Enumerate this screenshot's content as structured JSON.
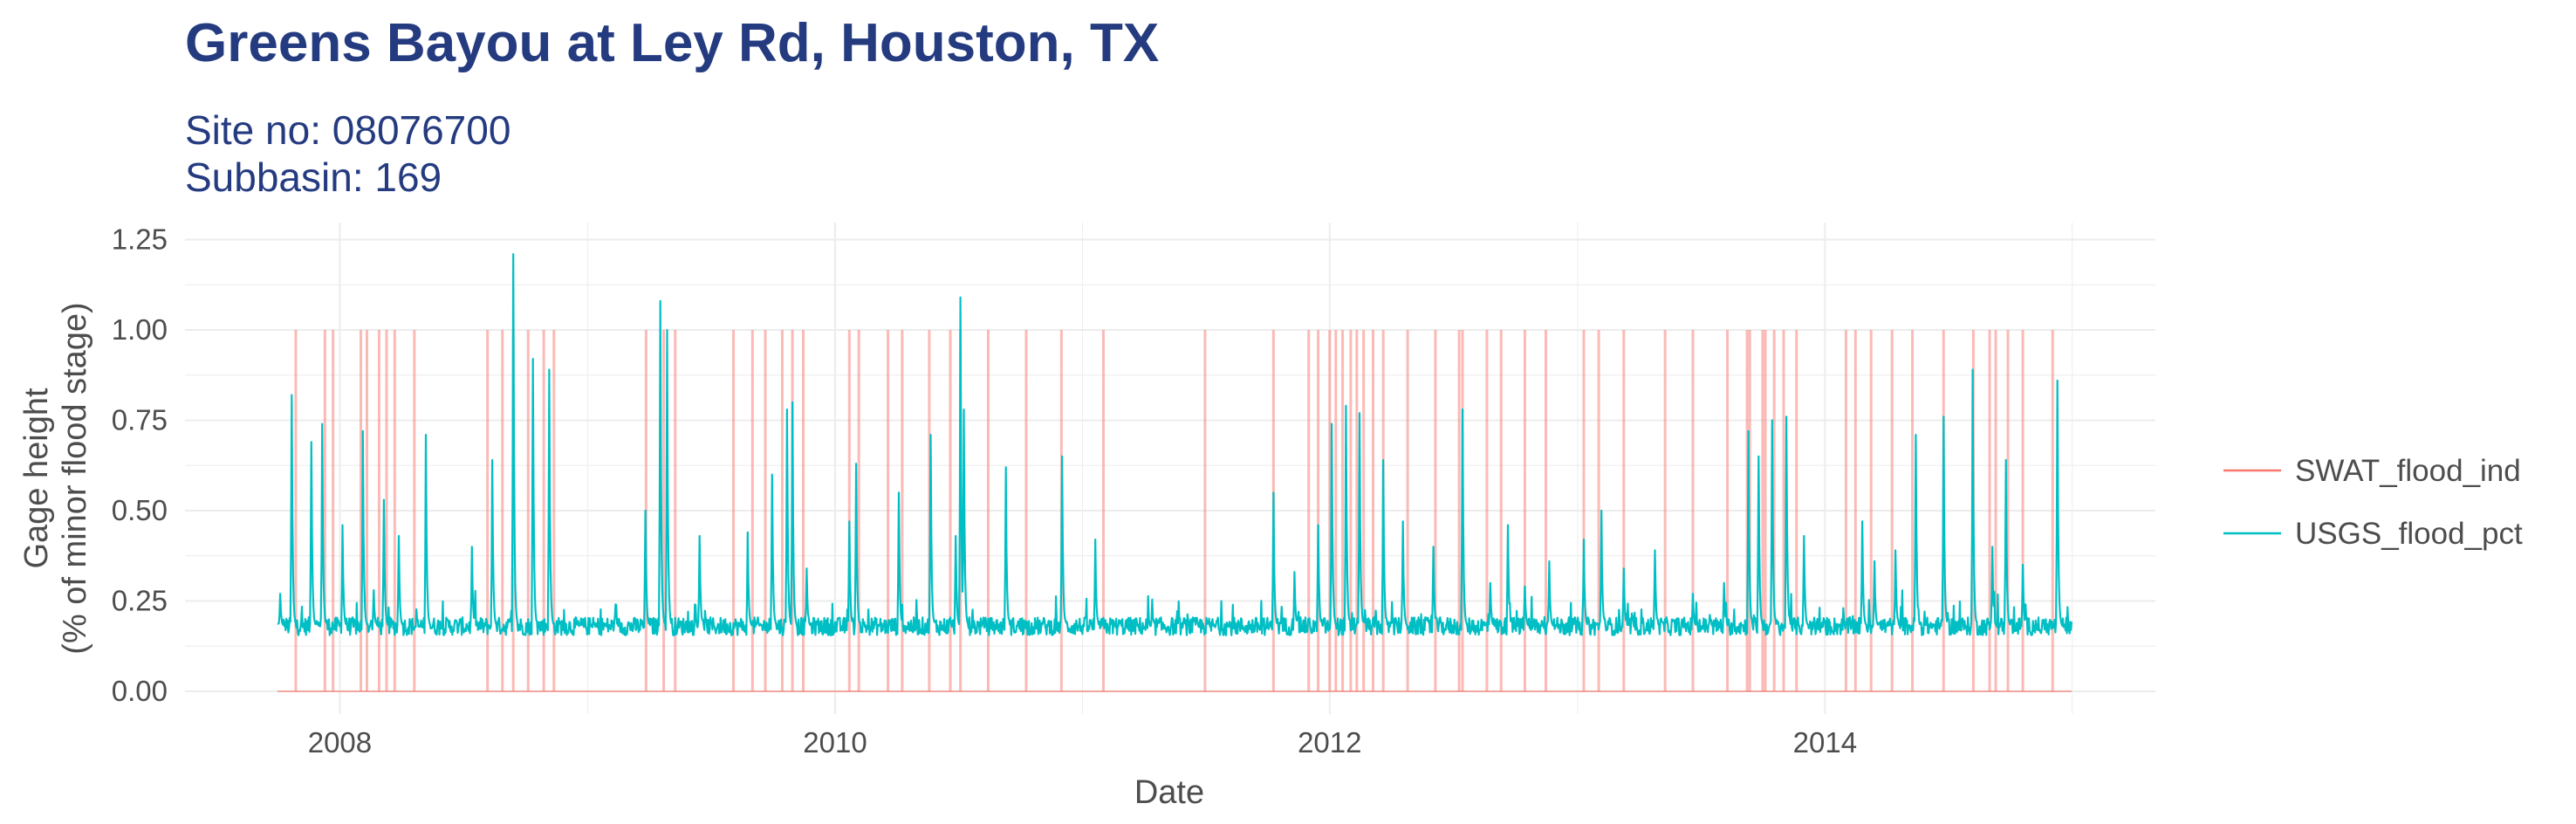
{
  "chart_data": {
    "type": "line",
    "title": "Greens Bayou at Ley Rd, Houston, TX",
    "subtitle": [
      "Site no: 08076700",
      "Subbasin: 169"
    ],
    "xlabel": "Date",
    "ylabel": [
      "Gage height",
      "(% of minor flood stage)"
    ],
    "x_range": [
      "2007-10-01",
      "2014-12-31"
    ],
    "x_ticks": [
      "2008",
      "2010",
      "2012",
      "2014"
    ],
    "ylim": [
      -0.06,
      1.25
    ],
    "y_ticks": [
      "0.00",
      "0.25",
      "0.50",
      "0.75",
      "1.00",
      "1.25"
    ],
    "grid": true,
    "legend_position": "right",
    "series": [
      {
        "name": "SWAT_flood_ind",
        "color": "#F8766D",
        "baseline": 0,
        "flood_value": 1,
        "flood_dates": [
          "2007-10-28",
          "2007-12-10",
          "2007-12-22",
          "2008-02-01",
          "2008-02-10",
          "2008-02-28",
          "2008-03-10",
          "2008-03-22",
          "2008-04-20",
          "2008-08-06",
          "2008-08-28",
          "2008-09-13",
          "2008-10-05",
          "2008-10-28",
          "2008-11-12",
          "2009-03-28",
          "2009-04-23",
          "2009-05-10",
          "2009-08-04",
          "2009-09-01",
          "2009-09-20",
          "2009-10-15",
          "2009-10-30",
          "2009-11-15",
          "2010-01-22",
          "2010-02-05",
          "2010-03-20",
          "2010-04-10",
          "2010-05-20",
          "2010-06-20",
          "2010-07-05",
          "2010-08-15",
          "2010-10-10",
          "2010-12-01",
          "2011-02-01",
          "2011-07-01",
          "2011-10-10",
          "2011-12-01",
          "2011-12-15",
          "2012-01-01",
          "2012-01-10",
          "2012-01-20",
          "2012-02-01",
          "2012-02-10",
          "2012-02-20",
          "2012-03-05",
          "2012-03-20",
          "2012-04-25",
          "2012-06-05",
          "2012-07-10",
          "2012-07-15",
          "2012-08-20",
          "2012-09-10",
          "2012-10-15",
          "2012-11-15",
          "2013-01-10",
          "2013-02-01",
          "2013-03-10",
          "2013-05-10",
          "2013-06-20",
          "2013-08-10",
          "2013-09-08",
          "2013-09-12",
          "2013-10-01",
          "2013-10-05",
          "2013-10-18",
          "2013-11-01",
          "2013-11-20",
          "2014-02-01",
          "2014-02-15",
          "2014-03-10",
          "2014-04-10",
          "2014-05-10",
          "2014-06-25",
          "2014-08-08",
          "2014-09-01",
          "2014-09-10",
          "2014-09-28",
          "2014-10-20",
          "2014-12-03"
        ]
      },
      {
        "name": "USGS_flood_pct",
        "color": "#00BFC4",
        "base_level": 0.18,
        "peaks": [
          [
            "2007-10-05",
            0.27
          ],
          [
            "2007-10-22",
            0.82
          ],
          [
            "2007-11-20",
            0.69
          ],
          [
            "2007-12-06",
            0.74
          ],
          [
            "2008-01-05",
            0.46
          ],
          [
            "2008-02-04",
            0.72
          ],
          [
            "2008-02-20",
            0.28
          ],
          [
            "2008-03-06",
            0.53
          ],
          [
            "2008-03-28",
            0.43
          ],
          [
            "2008-05-07",
            0.71
          ],
          [
            "2008-07-14",
            0.4
          ],
          [
            "2008-08-13",
            0.64
          ],
          [
            "2008-09-13",
            1.21
          ],
          [
            "2008-10-12",
            0.92
          ],
          [
            "2008-11-05",
            0.89
          ],
          [
            "2009-02-10",
            0.21
          ],
          [
            "2009-03-27",
            0.5
          ],
          [
            "2009-04-18",
            1.08
          ],
          [
            "2009-04-28",
            1.0
          ],
          [
            "2009-06-15",
            0.43
          ],
          [
            "2009-08-25",
            0.44
          ],
          [
            "2009-09-30",
            0.6
          ],
          [
            "2009-10-22",
            0.78
          ],
          [
            "2009-10-30",
            0.8
          ],
          [
            "2009-11-20",
            0.34
          ],
          [
            "2010-01-22",
            0.47
          ],
          [
            "2010-02-01",
            0.63
          ],
          [
            "2010-04-05",
            0.55
          ],
          [
            "2010-05-22",
            0.71
          ],
          [
            "2010-06-28",
            0.43
          ],
          [
            "2010-07-05",
            1.09
          ],
          [
            "2010-07-10",
            0.78
          ],
          [
            "2010-09-10",
            0.62
          ],
          [
            "2010-12-02",
            0.65
          ],
          [
            "2011-01-20",
            0.42
          ],
          [
            "2011-10-10",
            0.55
          ],
          [
            "2011-11-10",
            0.33
          ],
          [
            "2011-12-15",
            0.46
          ],
          [
            "2012-01-04",
            0.74
          ],
          [
            "2012-01-25",
            0.79
          ],
          [
            "2012-02-14",
            0.77
          ],
          [
            "2012-03-20",
            0.64
          ],
          [
            "2012-04-18",
            0.47
          ],
          [
            "2012-06-02",
            0.4
          ],
          [
            "2012-07-15",
            0.78
          ],
          [
            "2012-08-25",
            0.3
          ],
          [
            "2012-09-20",
            0.46
          ],
          [
            "2012-10-15",
            0.29
          ],
          [
            "2012-11-20",
            0.36
          ],
          [
            "2013-01-10",
            0.42
          ],
          [
            "2013-02-05",
            0.5
          ],
          [
            "2013-03-10",
            0.34
          ],
          [
            "2013-04-25",
            0.39
          ],
          [
            "2013-06-20",
            0.27
          ],
          [
            "2013-08-05",
            0.3
          ],
          [
            "2013-09-10",
            0.72
          ],
          [
            "2013-09-25",
            0.65
          ],
          [
            "2013-10-15",
            0.75
          ],
          [
            "2013-11-05",
            0.76
          ],
          [
            "2013-12-01",
            0.43
          ],
          [
            "2014-02-25",
            0.47
          ],
          [
            "2014-03-15",
            0.36
          ],
          [
            "2014-04-15",
            0.39
          ],
          [
            "2014-05-15",
            0.71
          ],
          [
            "2014-06-25",
            0.76
          ],
          [
            "2014-08-07",
            0.89
          ],
          [
            "2014-09-05",
            0.4
          ],
          [
            "2014-09-25",
            0.64
          ],
          [
            "2014-10-20",
            0.35
          ],
          [
            "2014-12-10",
            0.86
          ]
        ]
      }
    ]
  }
}
